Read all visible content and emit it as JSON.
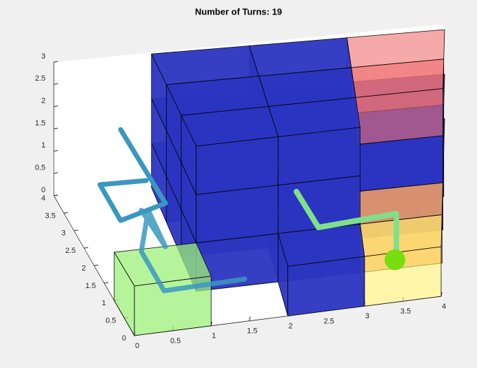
{
  "chart_data": {
    "type": "scene3d",
    "title": "Number of Turns: 19",
    "xlim": [
      0,
      4
    ],
    "ylim": [
      0,
      4
    ],
    "zlim": [
      0,
      3
    ],
    "xticks": [
      0,
      0.5,
      1,
      1.5,
      2,
      2.5,
      3,
      3.5,
      4
    ],
    "yticks": [
      0,
      0.5,
      1,
      1.5,
      2,
      2.5,
      3,
      3.5,
      4
    ],
    "zticks": [
      0,
      0.5,
      1,
      1.5,
      2,
      2.5,
      3
    ]
  }
}
